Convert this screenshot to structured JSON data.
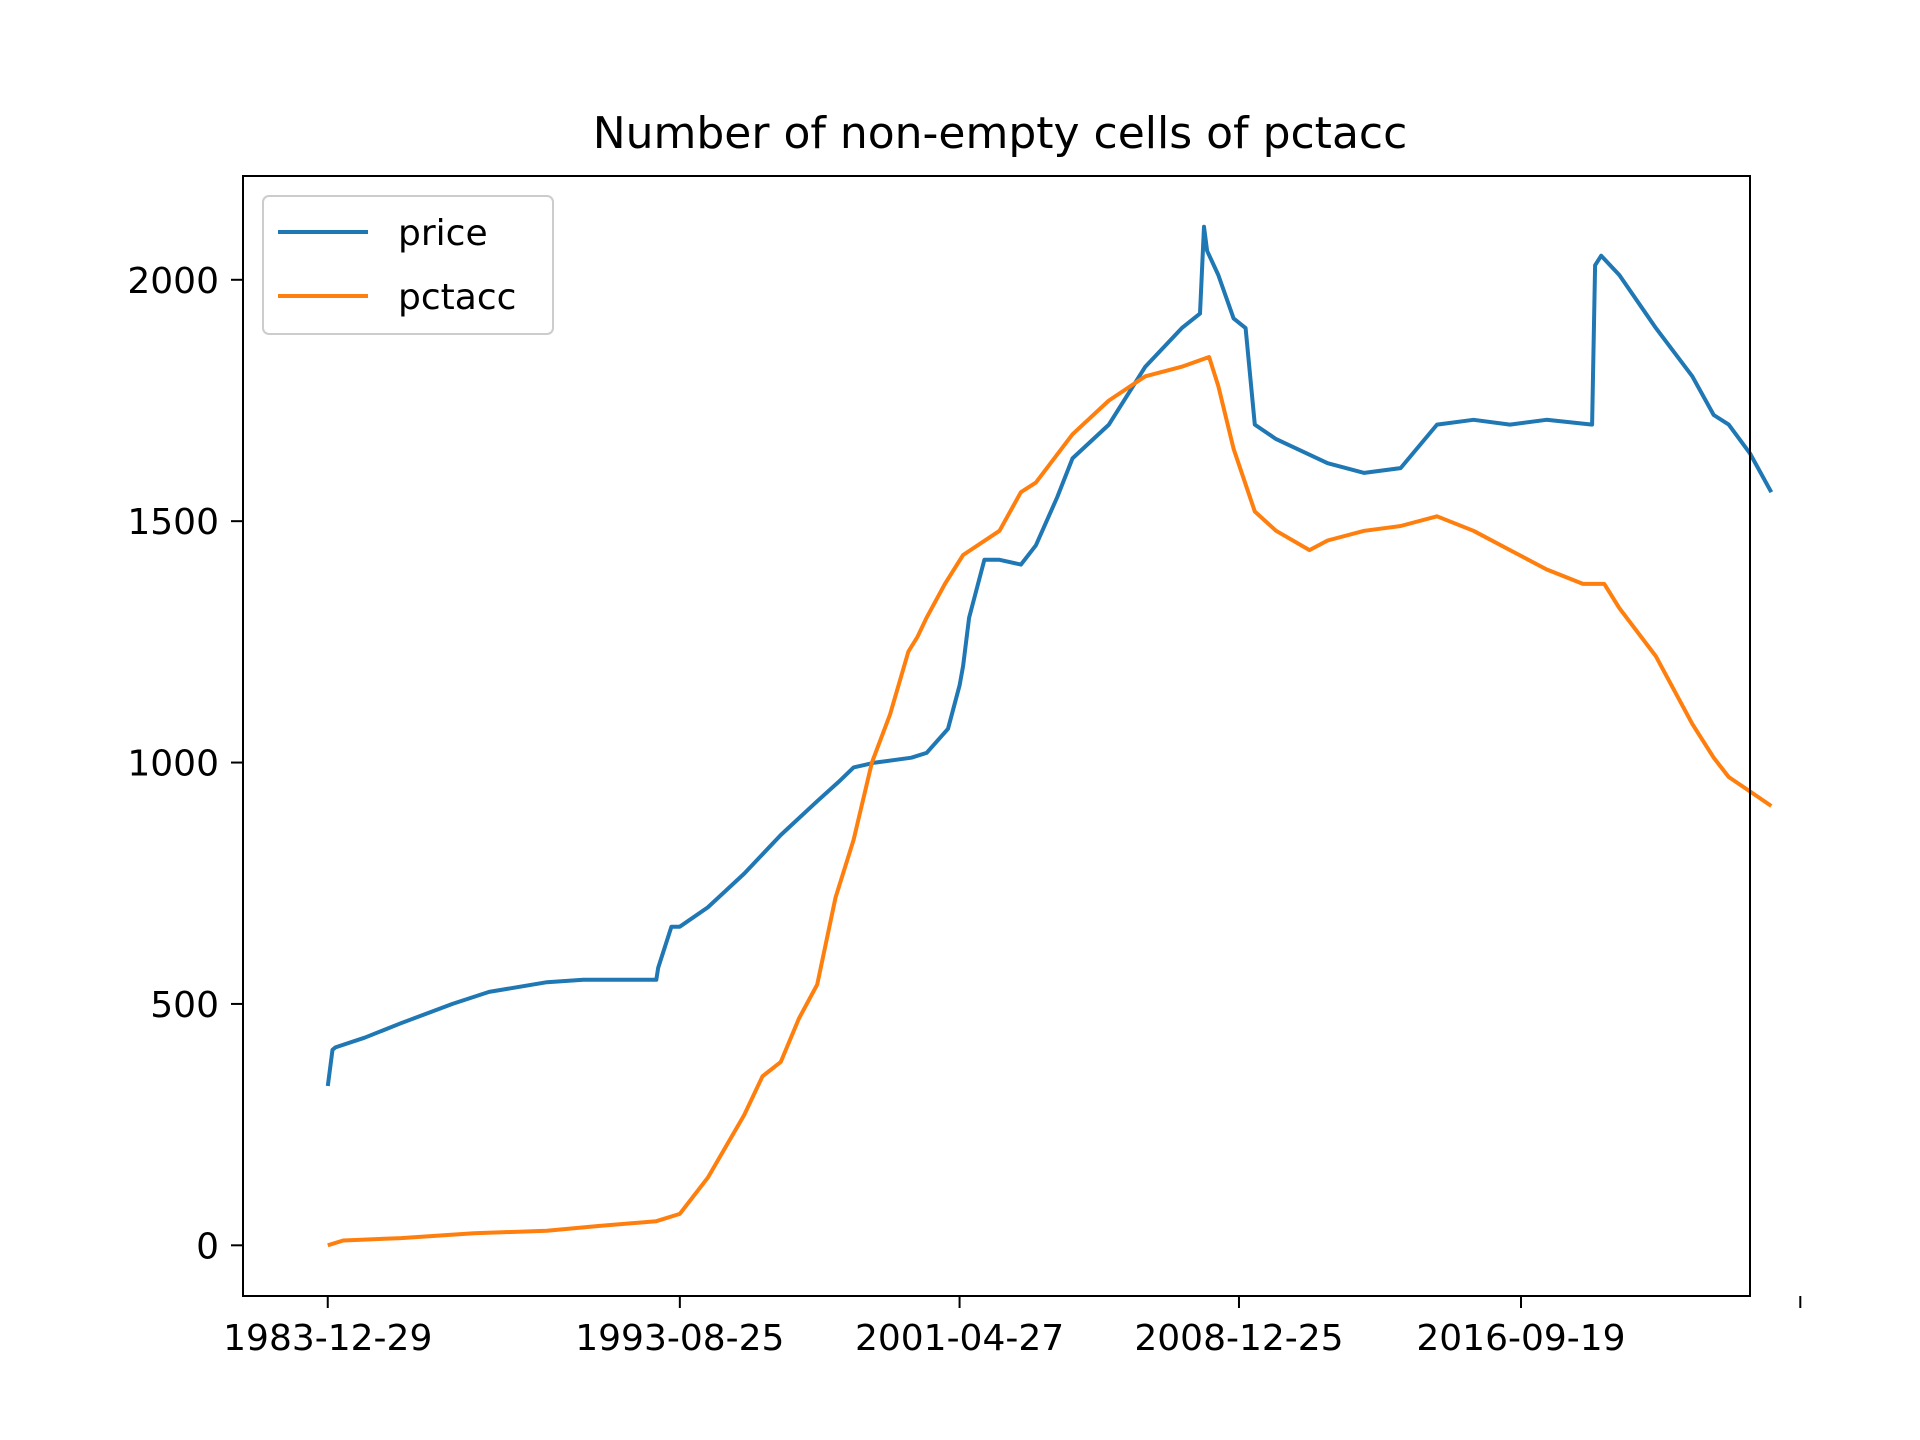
{
  "chart_data": {
    "type": "line",
    "title": "Number of non-empty cells of pctacc",
    "xlabel": "",
    "ylabel": "",
    "x_ticks": [
      "1983-12-29",
      "1993-08-25",
      "2001-04-27",
      "2008-12-25",
      "2016-09-19",
      ""
    ],
    "y_ticks": [
      0,
      500,
      1000,
      1500,
      2000
    ],
    "xlim": [
      "1981-09-01",
      "2022-12-31"
    ],
    "ylim": [
      -105,
      2215
    ],
    "grid": false,
    "legend_position": "upper-left",
    "series": [
      {
        "name": "price",
        "color": "#1f77b4",
        "x": [
          "1983-12-29",
          "1984-02-15",
          "1984-03-15",
          "1985-01-01",
          "1986-01-01",
          "1987-06-01",
          "1988-06-01",
          "1990-01-01",
          "1991-01-01",
          "1992-06-01",
          "1993-01-01",
          "1993-01-20",
          "1993-06-01",
          "1993-08-25",
          "1994-06-01",
          "1995-06-01",
          "1996-06-01",
          "1997-06-01",
          "1998-01-01",
          "1998-06-01",
          "1999-01-01",
          "2000-01-01",
          "2000-06-01",
          "2001-01-01",
          "2001-04-27",
          "2001-06-01",
          "2001-08-01",
          "2002-01-01",
          "2002-06-01",
          "2003-01-01",
          "2003-06-01",
          "2004-01-01",
          "2004-06-01",
          "2005-06-01",
          "2006-06-01",
          "2007-06-01",
          "2007-12-01",
          "2008-01-10",
          "2008-02-10",
          "2008-06-01",
          "2008-11-01",
          "2009-03-01",
          "2009-06-01",
          "2010-01-01",
          "2011-06-01",
          "2012-06-01",
          "2013-06-01",
          "2014-06-01",
          "2015-06-01",
          "2016-06-01",
          "2017-06-01",
          "2018-09-01",
          "2018-10-01",
          "2018-12-01",
          "2019-06-01",
          "2020-06-01",
          "2021-06-01",
          "2022-01-01",
          "2022-06-01",
          "2023-01-01",
          "2023-08-01"
        ],
        "values": [
          330,
          405,
          410,
          430,
          460,
          500,
          525,
          545,
          550,
          550,
          550,
          575,
          660,
          660,
          700,
          770,
          850,
          920,
          960,
          990,
          1000,
          1010,
          1020,
          1070,
          1160,
          1200,
          1300,
          1420,
          1420,
          1410,
          1450,
          1550,
          1630,
          1700,
          1820,
          1900,
          1930,
          2110,
          2060,
          2010,
          1920,
          1900,
          1700,
          1670,
          1620,
          1600,
          1610,
          1700,
          1710,
          1700,
          1710,
          1700,
          2030,
          2050,
          2010,
          1900,
          1800,
          1720,
          1700,
          1640,
          1560
        ]
      },
      {
        "name": "pctacc",
        "color": "#ff7f0e",
        "x": [
          "1983-12-29",
          "1984-06-01",
          "1986-01-01",
          "1988-01-01",
          "1990-01-01",
          "1991-06-01",
          "1993-01-01",
          "1993-08-25",
          "1994-06-01",
          "1995-06-01",
          "1995-12-01",
          "1996-06-01",
          "1996-12-01",
          "1997-06-01",
          "1997-12-01",
          "1998-06-01",
          "1998-12-01",
          "1999-06-01",
          "1999-12-01",
          "2000-03-01",
          "2000-06-01",
          "2000-12-01",
          "2001-06-01",
          "2002-06-01",
          "2003-01-01",
          "2003-06-01",
          "2004-06-01",
          "2005-06-01",
          "2006-06-01",
          "2007-06-01",
          "2008-03-01",
          "2008-06-01",
          "2008-11-01",
          "2009-06-01",
          "2010-01-01",
          "2010-12-01",
          "2011-06-01",
          "2012-06-01",
          "2013-06-01",
          "2014-06-01",
          "2015-06-01",
          "2016-06-01",
          "2017-06-01",
          "2018-06-01",
          "2019-01-01",
          "2019-06-01",
          "2020-06-01",
          "2021-06-01",
          "2022-01-01",
          "2022-06-01",
          "2023-01-01",
          "2023-08-01"
        ],
        "values": [
          0,
          10,
          15,
          25,
          30,
          40,
          50,
          65,
          140,
          270,
          350,
          380,
          470,
          540,
          720,
          840,
          1000,
          1100,
          1230,
          1260,
          1300,
          1370,
          1430,
          1480,
          1560,
          1580,
          1680,
          1750,
          1800,
          1820,
          1840,
          1780,
          1650,
          1520,
          1480,
          1440,
          1460,
          1480,
          1490,
          1510,
          1480,
          1440,
          1400,
          1370,
          1370,
          1320,
          1220,
          1080,
          1010,
          970,
          940,
          910
        ]
      }
    ]
  }
}
